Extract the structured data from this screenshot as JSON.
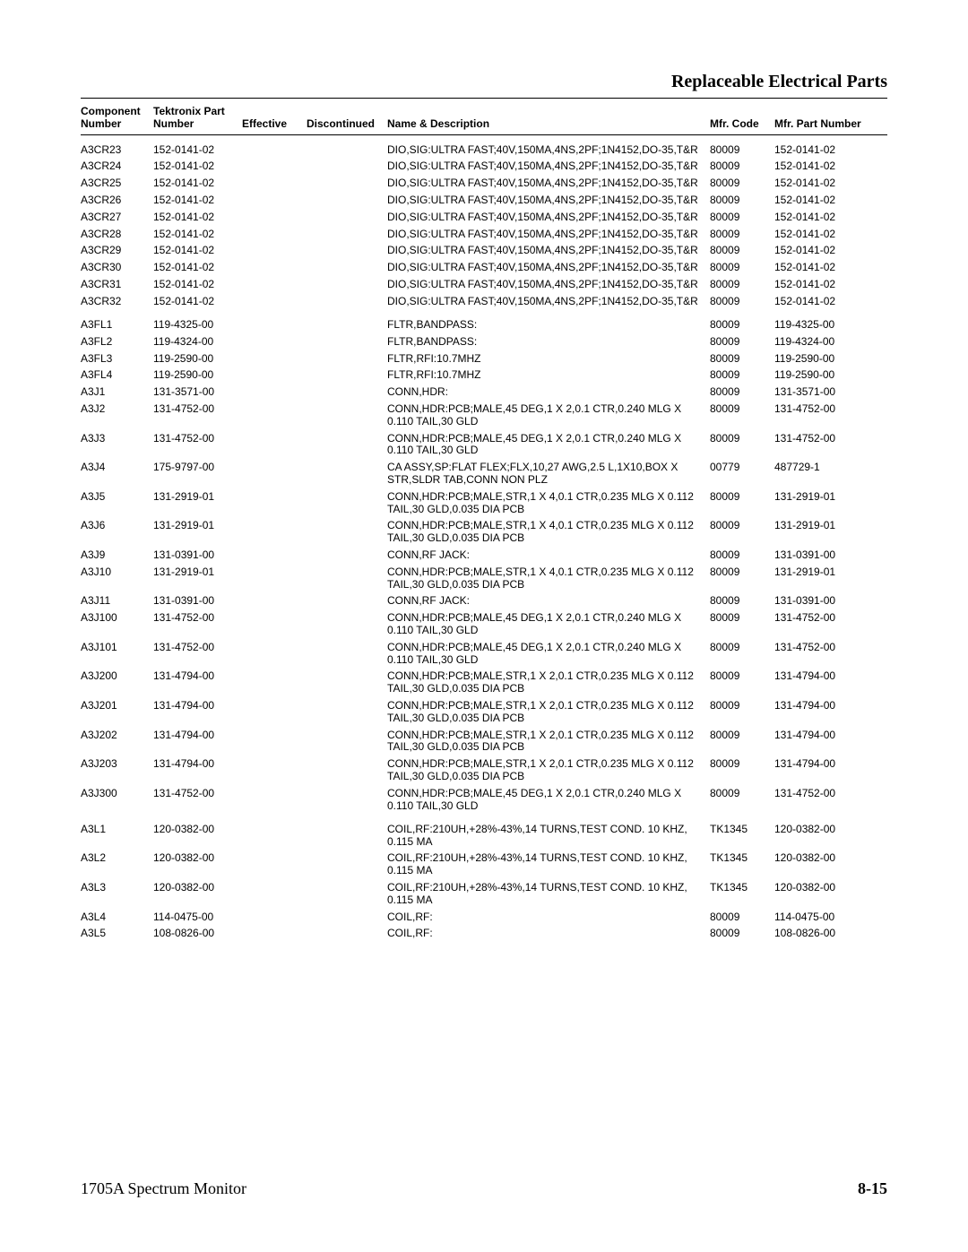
{
  "section_title": "Replaceable Electrical Parts",
  "footer_left": "1705A Spectrum Monitor",
  "footer_right": "8-15",
  "headers": {
    "component": "Component Number",
    "part": "Tektronix Part Number",
    "effective": "Effective",
    "discontinued": "Discontinued",
    "desc": "Name & Description",
    "mfr": "Mfr. Code",
    "mfrpn": "Mfr. Part Number"
  },
  "rows": [
    {
      "gap": true,
      "c": "A3CR23",
      "p": "152-0141-02",
      "d": "DIO,SIG:ULTRA FAST;40V,150MA,4NS,2PF;1N4152,DO-35,T&R",
      "m": "80009",
      "n": "152-0141-02"
    },
    {
      "c": "A3CR24",
      "p": "152-0141-02",
      "d": "DIO,SIG:ULTRA FAST;40V,150MA,4NS,2PF;1N4152,DO-35,T&R",
      "m": "80009",
      "n": "152-0141-02"
    },
    {
      "c": "A3CR25",
      "p": "152-0141-02",
      "d": "DIO,SIG:ULTRA FAST;40V,150MA,4NS,2PF;1N4152,DO-35,T&R",
      "m": "80009",
      "n": "152-0141-02"
    },
    {
      "c": "A3CR26",
      "p": "152-0141-02",
      "d": "DIO,SIG:ULTRA FAST;40V,150MA,4NS,2PF;1N4152,DO-35,T&R",
      "m": "80009",
      "n": "152-0141-02"
    },
    {
      "c": "A3CR27",
      "p": "152-0141-02",
      "d": "DIO,SIG:ULTRA FAST;40V,150MA,4NS,2PF;1N4152,DO-35,T&R",
      "m": "80009",
      "n": "152-0141-02"
    },
    {
      "c": "A3CR28",
      "p": "152-0141-02",
      "d": "DIO,SIG:ULTRA FAST;40V,150MA,4NS,2PF;1N4152,DO-35,T&R",
      "m": "80009",
      "n": "152-0141-02"
    },
    {
      "c": "A3CR29",
      "p": "152-0141-02",
      "d": "DIO,SIG:ULTRA FAST;40V,150MA,4NS,2PF;1N4152,DO-35,T&R",
      "m": "80009",
      "n": "152-0141-02"
    },
    {
      "c": "A3CR30",
      "p": "152-0141-02",
      "d": "DIO,SIG:ULTRA FAST;40V,150MA,4NS,2PF;1N4152,DO-35,T&R",
      "m": "80009",
      "n": "152-0141-02"
    },
    {
      "c": "A3CR31",
      "p": "152-0141-02",
      "d": "DIO,SIG:ULTRA FAST;40V,150MA,4NS,2PF;1N4152,DO-35,T&R",
      "m": "80009",
      "n": "152-0141-02"
    },
    {
      "c": "A3CR32",
      "p": "152-0141-02",
      "d": "DIO,SIG:ULTRA FAST;40V,150MA,4NS,2PF;1N4152,DO-35,T&R",
      "m": "80009",
      "n": "152-0141-02"
    },
    {
      "gap": true,
      "c": "A3FL1",
      "p": "119-4325-00",
      "d": "FLTR,BANDPASS:",
      "m": "80009",
      "n": "119-4325-00"
    },
    {
      "c": "A3FL2",
      "p": "119-4324-00",
      "d": "FLTR,BANDPASS:",
      "m": "80009",
      "n": "119-4324-00"
    },
    {
      "c": "A3FL3",
      "p": "119-2590-00",
      "d": "FLTR,RFI:10.7MHZ",
      "m": "80009",
      "n": "119-2590-00"
    },
    {
      "c": "A3FL4",
      "p": "119-2590-00",
      "d": "FLTR,RFI:10.7MHZ",
      "m": "80009",
      "n": "119-2590-00"
    },
    {
      "c": "A3J1",
      "p": "131-3571-00",
      "d": "CONN,HDR:",
      "m": "80009",
      "n": "131-3571-00"
    },
    {
      "c": "A3J2",
      "p": "131-4752-00",
      "d": "CONN,HDR:PCB;MALE,45 DEG,1 X 2,0.1 CTR,0.240 MLG X 0.110 TAIL,30 GLD",
      "m": "80009",
      "n": "131-4752-00"
    },
    {
      "c": "A3J3",
      "p": "131-4752-00",
      "d": "CONN,HDR:PCB;MALE,45 DEG,1 X 2,0.1 CTR,0.240 MLG X 0.110 TAIL,30 GLD",
      "m": "80009",
      "n": "131-4752-00"
    },
    {
      "c": "A3J4",
      "p": "175-9797-00",
      "d": "CA ASSY,SP:FLAT FLEX;FLX,10,27 AWG,2.5 L,1X10,BOX X STR,SLDR TAB,CONN NON PLZ",
      "m": "00779",
      "n": "487729-1"
    },
    {
      "c": "A3J5",
      "p": "131-2919-01",
      "d": "CONN,HDR:PCB;MALE,STR,1 X 4,0.1 CTR,0.235 MLG X 0.112 TAIL,30 GLD,0.035 DIA PCB",
      "m": "80009",
      "n": "131-2919-01"
    },
    {
      "c": "A3J6",
      "p": "131-2919-01",
      "d": "CONN,HDR:PCB;MALE,STR,1 X 4,0.1 CTR,0.235 MLG X 0.112 TAIL,30 GLD,0.035 DIA PCB",
      "m": "80009",
      "n": "131-2919-01"
    },
    {
      "c": "A3J9",
      "p": "131-0391-00",
      "d": "CONN,RF JACK:",
      "m": "80009",
      "n": "131-0391-00"
    },
    {
      "c": "A3J10",
      "p": "131-2919-01",
      "d": "CONN,HDR:PCB;MALE,STR,1 X 4,0.1 CTR,0.235 MLG X 0.112 TAIL,30 GLD,0.035 DIA PCB",
      "m": "80009",
      "n": "131-2919-01"
    },
    {
      "c": "A3J11",
      "p": "131-0391-00",
      "d": "CONN,RF JACK:",
      "m": "80009",
      "n": "131-0391-00"
    },
    {
      "c": "A3J100",
      "p": "131-4752-00",
      "d": "CONN,HDR:PCB;MALE,45 DEG,1 X 2,0.1 CTR,0.240 MLG X 0.110 TAIL,30 GLD",
      "m": "80009",
      "n": "131-4752-00"
    },
    {
      "c": "A3J101",
      "p": "131-4752-00",
      "d": "CONN,HDR:PCB;MALE,45 DEG,1 X 2,0.1 CTR,0.240 MLG X 0.110 TAIL,30 GLD",
      "m": "80009",
      "n": "131-4752-00"
    },
    {
      "c": "A3J200",
      "p": "131-4794-00",
      "d": "CONN,HDR:PCB;MALE,STR,1 X 2,0.1 CTR,0.235 MLG X 0.112 TAIL,30 GLD,0.035 DIA PCB",
      "m": "80009",
      "n": "131-4794-00"
    },
    {
      "c": "A3J201",
      "p": "131-4794-00",
      "d": "CONN,HDR:PCB;MALE,STR,1 X 2,0.1 CTR,0.235 MLG X 0.112 TAIL,30 GLD,0.035 DIA PCB",
      "m": "80009",
      "n": "131-4794-00"
    },
    {
      "c": "A3J202",
      "p": "131-4794-00",
      "d": "CONN,HDR:PCB;MALE,STR,1 X 2,0.1 CTR,0.235 MLG X 0.112 TAIL,30 GLD,0.035 DIA PCB",
      "m": "80009",
      "n": "131-4794-00"
    },
    {
      "c": "A3J203",
      "p": "131-4794-00",
      "d": "CONN,HDR:PCB;MALE,STR,1 X 2,0.1 CTR,0.235 MLG X 0.112 TAIL,30 GLD,0.035 DIA PCB",
      "m": "80009",
      "n": "131-4794-00"
    },
    {
      "c": "A3J300",
      "p": "131-4752-00",
      "d": "CONN,HDR:PCB;MALE,45 DEG,1 X 2,0.1 CTR,0.240 MLG X 0.110 TAIL,30 GLD",
      "m": "80009",
      "n": "131-4752-00"
    },
    {
      "gap": true,
      "c": "A3L1",
      "p": "120-0382-00",
      "d": "COIL,RF:210UH,+28%-43%,14 TURNS,TEST COND. 10 KHZ, 0.115 MA",
      "m": "TK1345",
      "n": "120-0382-00"
    },
    {
      "c": "A3L2",
      "p": "120-0382-00",
      "d": "COIL,RF:210UH,+28%-43%,14 TURNS,TEST COND. 10 KHZ, 0.115 MA",
      "m": "TK1345",
      "n": "120-0382-00"
    },
    {
      "c": "A3L3",
      "p": "120-0382-00",
      "d": "COIL,RF:210UH,+28%-43%,14 TURNS,TEST COND. 10 KHZ, 0.115 MA",
      "m": "TK1345",
      "n": "120-0382-00"
    },
    {
      "c": "A3L4",
      "p": "114-0475-00",
      "d": "COIL,RF:",
      "m": "80009",
      "n": "114-0475-00"
    },
    {
      "c": "A3L5",
      "p": "108-0826-00",
      "d": "COIL,RF:",
      "m": "80009",
      "n": "108-0826-00"
    }
  ]
}
